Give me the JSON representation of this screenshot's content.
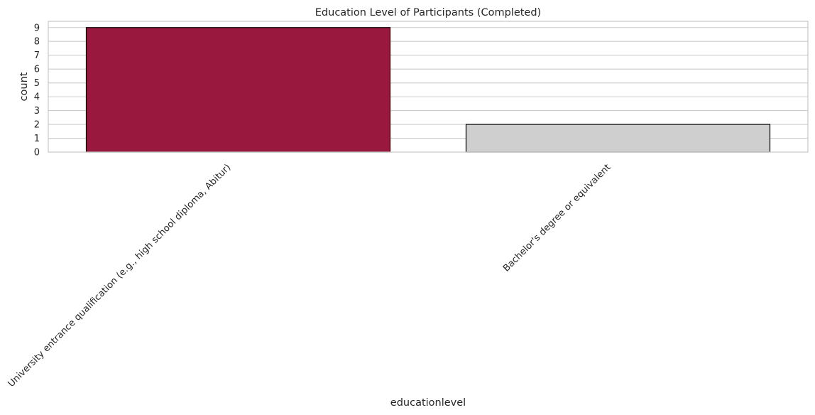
{
  "chart_data": {
    "type": "bar",
    "title": "Education Level of Participants (Completed)",
    "xlabel": "educationlevel",
    "ylabel": "count",
    "categories": [
      "University entrance qualification (e.g., high school diploma, Abitur)",
      "Bachelor's degree or equivalent"
    ],
    "values": [
      9,
      2
    ],
    "colors": [
      "#98193d",
      "#cfcfcf"
    ],
    "bar_edge_color": "#000000",
    "ylim": [
      0,
      9.45
    ],
    "yticks": [
      0,
      1,
      2,
      3,
      4,
      5,
      6,
      7,
      8,
      9
    ],
    "grid": true,
    "grid_color": "#cccccc",
    "frame_color": "#cccccc",
    "xtick_rotation_deg": 45
  }
}
